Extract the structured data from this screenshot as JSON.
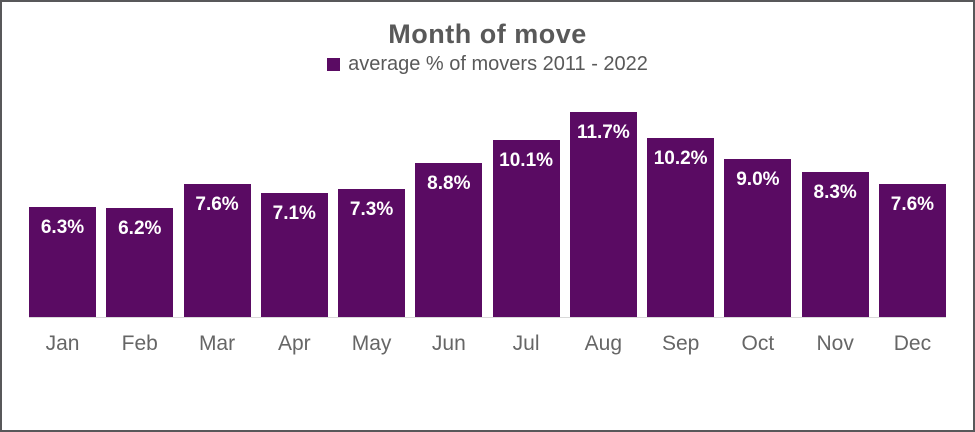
{
  "window": {
    "background": "#ffffff",
    "frame_border_color": "#58585a"
  },
  "chart_data": {
    "type": "bar",
    "title": "Month of move",
    "legend": "average % of movers 2011 - 2022",
    "legend_position": "top",
    "categories": [
      "Jan",
      "Feb",
      "Mar",
      "Apr",
      "May",
      "Jun",
      "Jul",
      "Aug",
      "Sep",
      "Oct",
      "Nov",
      "Dec"
    ],
    "values": [
      6.3,
      6.2,
      7.6,
      7.1,
      7.3,
      8.8,
      10.1,
      11.7,
      10.2,
      9.0,
      8.3,
      7.6
    ],
    "labels": [
      "6.3%",
      "6.2%",
      "7.6%",
      "7.1%",
      "7.3%",
      "8.8%",
      "10.1%",
      "11.7%",
      "10.2%",
      "9.0%",
      "8.3%",
      "7.6%"
    ],
    "xlabel": "",
    "ylabel": "",
    "ylim": [
      0,
      11.7
    ],
    "grid": false,
    "y_axis_visible": false,
    "bar_color": "#5a0b63",
    "label_color": "#ffffff",
    "axis_line_color": "#d9d9d9",
    "text_color": "#595959",
    "tick_color": "#666666"
  }
}
